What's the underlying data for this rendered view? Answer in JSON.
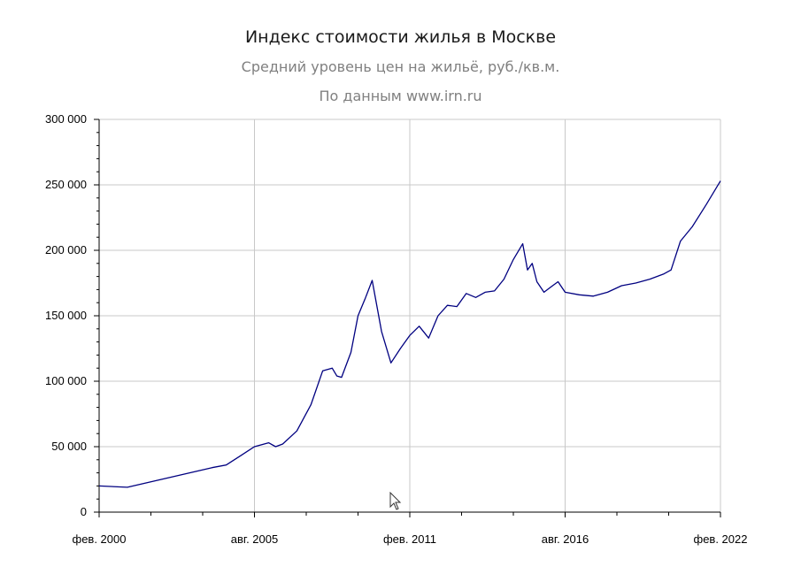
{
  "chart_data": {
    "type": "line",
    "title": "Индекс стоимости жилья в Москве",
    "subtitle": "Средний уровень цен на жильё, руб./кв.м.",
    "source": "По данным www.irn.ru",
    "xlabel": "",
    "ylabel": "",
    "ylim": [
      0,
      300000
    ],
    "xlim": [
      "2000-02",
      "2022-02"
    ],
    "yticks": [
      0,
      50000,
      100000,
      150000,
      200000,
      250000,
      300000
    ],
    "ytick_labels": [
      "0",
      "50 000",
      "100 000",
      "150 000",
      "200 000",
      "250 000",
      "300 000"
    ],
    "xticks": [
      "2000-02",
      "2005-08",
      "2011-02",
      "2016-08",
      "2022-02"
    ],
    "xtick_labels": [
      "фев. 2000",
      "авг. 2005",
      "фев. 2011",
      "авг. 2016",
      "фев. 2022"
    ],
    "grid": true,
    "legend": false,
    "line_color": "#000080",
    "series": [
      {
        "x": [
          "2000-02",
          "2001-02",
          "2002-02",
          "2003-02",
          "2004-02",
          "2004-08",
          "2005-02",
          "2005-08",
          "2006-02",
          "2006-05",
          "2006-08",
          "2007-02",
          "2007-08",
          "2008-01",
          "2008-05",
          "2008-07",
          "2008-09",
          "2009-01",
          "2009-04",
          "2009-07",
          "2009-10",
          "2010-02",
          "2010-06",
          "2010-10",
          "2011-02",
          "2011-06",
          "2011-10",
          "2012-02",
          "2012-06",
          "2012-10",
          "2013-02",
          "2013-06",
          "2013-10",
          "2014-02",
          "2014-06",
          "2014-10",
          "2015-02",
          "2015-04",
          "2015-06",
          "2015-08",
          "2015-11",
          "2016-02",
          "2016-05",
          "2016-08",
          "2017-02",
          "2017-08",
          "2018-02",
          "2018-08",
          "2019-02",
          "2019-08",
          "2020-02",
          "2020-05",
          "2020-09",
          "2021-02",
          "2021-08",
          "2022-02"
        ],
        "values": [
          20000,
          19000,
          24000,
          29000,
          34000,
          36000,
          43000,
          50000,
          53000,
          50000,
          52000,
          62000,
          82000,
          108000,
          110000,
          104000,
          103000,
          122000,
          150000,
          163000,
          177000,
          138000,
          114000,
          125000,
          135000,
          142000,
          133000,
          150000,
          158000,
          157000,
          167000,
          164000,
          168000,
          169000,
          178000,
          193000,
          205000,
          185000,
          190000,
          176000,
          168000,
          172000,
          176000,
          168000,
          166000,
          165000,
          168000,
          173000,
          175000,
          178000,
          182000,
          185000,
          207000,
          218000,
          235000,
          253000
        ]
      }
    ]
  },
  "cursor_icon": "mouse-pointer-icon"
}
